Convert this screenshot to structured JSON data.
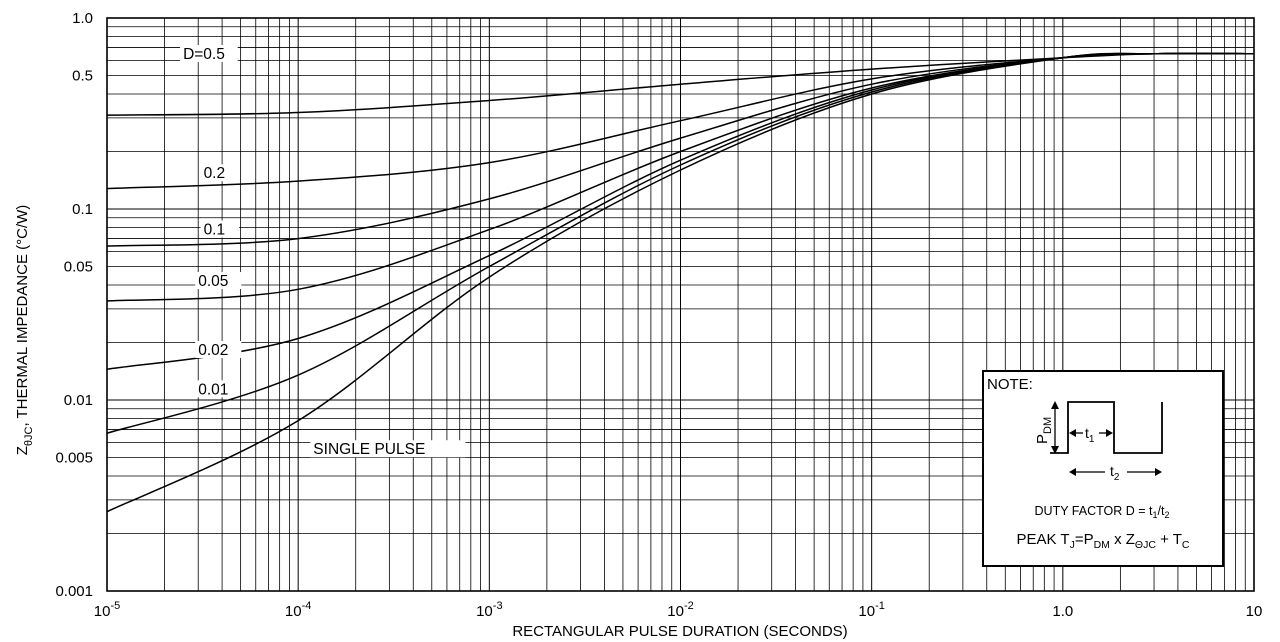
{
  "chart_data": {
    "type": "line",
    "title": "",
    "xlabel": "RECTANGULAR PULSE DURATION (SECONDS)",
    "ylabel_parts": [
      "Z",
      "θJC",
      ", THERMAL IMPEDANCE (°C/W)"
    ],
    "x_scale": "log",
    "y_scale": "log",
    "xlim": [
      1e-05,
      10
    ],
    "ylim": [
      0.001,
      1.0
    ],
    "x_ticks": [
      {
        "value": 1e-05,
        "base": "10",
        "exp": "-5"
      },
      {
        "value": 0.0001,
        "base": "10",
        "exp": "-4"
      },
      {
        "value": 0.001,
        "base": "10",
        "exp": "-3"
      },
      {
        "value": 0.01,
        "base": "10",
        "exp": "-2"
      },
      {
        "value": 0.1,
        "base": "10",
        "exp": "-1"
      },
      {
        "value": 1.0,
        "base": "1.0",
        "exp": ""
      },
      {
        "value": 10,
        "base": "10",
        "exp": ""
      }
    ],
    "y_ticks": [
      {
        "value": 1.0,
        "label": "1.0"
      },
      {
        "value": 0.5,
        "label": "0.5"
      },
      {
        "value": 0.1,
        "label": "0.1"
      },
      {
        "value": 0.05,
        "label": "0.05"
      },
      {
        "value": 0.01,
        "label": "0.01"
      },
      {
        "value": 0.005,
        "label": "0.005"
      },
      {
        "value": 0.001,
        "label": "0.001"
      }
    ],
    "grid": true,
    "series": [
      {
        "name": "D=0.5",
        "label_at": [
          2.5e-05,
          0.61
        ],
        "label_width_decades": 0.27,
        "points": [
          [
            1e-05,
            0.31
          ],
          [
            0.0001,
            0.32
          ],
          [
            0.001,
            0.37
          ],
          [
            0.01,
            0.45
          ],
          [
            0.1,
            0.54
          ],
          [
            1.0,
            0.62
          ],
          [
            3,
            0.65
          ],
          [
            10,
            0.65
          ]
        ]
      },
      {
        "name": "0.2",
        "label_at": [
          3.2e-05,
          0.145
        ],
        "label_width_decades": 0.17,
        "points": [
          [
            1e-05,
            0.128
          ],
          [
            0.0001,
            0.14
          ],
          [
            0.001,
            0.175
          ],
          [
            0.01,
            0.29
          ],
          [
            0.1,
            0.48
          ],
          [
            1.0,
            0.62
          ],
          [
            3,
            0.65
          ],
          [
            10,
            0.65
          ]
        ]
      },
      {
        "name": "0.1",
        "label_at": [
          3.2e-05,
          0.0735
        ],
        "label_width_decades": 0.17,
        "points": [
          [
            1e-05,
            0.064
          ],
          [
            0.0001,
            0.07
          ],
          [
            0.001,
            0.113
          ],
          [
            0.01,
            0.235
          ],
          [
            0.1,
            0.45
          ],
          [
            1.0,
            0.62
          ],
          [
            3,
            0.65
          ],
          [
            10,
            0.65
          ]
        ]
      },
      {
        "name": "0.05",
        "label_at": [
          3e-05,
          0.0395
        ],
        "label_width_decades": 0.21,
        "points": [
          [
            1e-05,
            0.033
          ],
          [
            0.0001,
            0.038
          ],
          [
            0.001,
            0.078
          ],
          [
            0.01,
            0.2
          ],
          [
            0.1,
            0.43
          ],
          [
            1.0,
            0.62
          ],
          [
            3,
            0.65
          ],
          [
            10,
            0.65
          ]
        ]
      },
      {
        "name": "0.02",
        "label_at": [
          3e-05,
          0.0172
        ],
        "label_width_decades": 0.21,
        "points": [
          [
            1e-05,
            0.0145
          ],
          [
            0.0001,
            0.021
          ],
          [
            0.001,
            0.057
          ],
          [
            0.01,
            0.18
          ],
          [
            0.1,
            0.42
          ],
          [
            1.0,
            0.62
          ],
          [
            3,
            0.65
          ],
          [
            10,
            0.65
          ]
        ]
      },
      {
        "name": "0.01",
        "label_at": [
          3e-05,
          0.0107
        ],
        "label_width_decades": 0.17,
        "points": [
          [
            1e-05,
            0.0067
          ],
          [
            0.0001,
            0.0135
          ],
          [
            0.001,
            0.05
          ],
          [
            0.01,
            0.17
          ],
          [
            0.1,
            0.41
          ],
          [
            1.0,
            0.62
          ],
          [
            3,
            0.65
          ],
          [
            10,
            0.65
          ]
        ]
      },
      {
        "name": "SINGLE PULSE",
        "label_at": [
          0.00012,
          0.0052
        ],
        "label_width_decades": 0.78,
        "points": [
          [
            1e-05,
            0.0026
          ],
          [
            0.0001,
            0.0078
          ],
          [
            0.001,
            0.044
          ],
          [
            0.01,
            0.16
          ],
          [
            0.1,
            0.4
          ],
          [
            1.0,
            0.62
          ],
          [
            3,
            0.65
          ],
          [
            10,
            0.65
          ]
        ]
      }
    ]
  },
  "note": {
    "title": "NOTE:",
    "pdm_base": "P",
    "pdm_sub": "DM",
    "t1_base": "t",
    "t1_sub": "1",
    "t2_base": "t",
    "t2_sub": "2",
    "duty_prefix": "DUTY FACTOR D = t",
    "duty_sub1": "1",
    "duty_mid": "/t",
    "duty_sub2": "2",
    "peak_prefix": "PEAK T",
    "peak_sub_j": "J",
    "peak_eq": "=P",
    "peak_sub_dm": "DM",
    "peak_mid": " x Z",
    "peak_sub_theta": "ΘJC",
    "peak_plus": " + T",
    "peak_sub_c": "C"
  }
}
